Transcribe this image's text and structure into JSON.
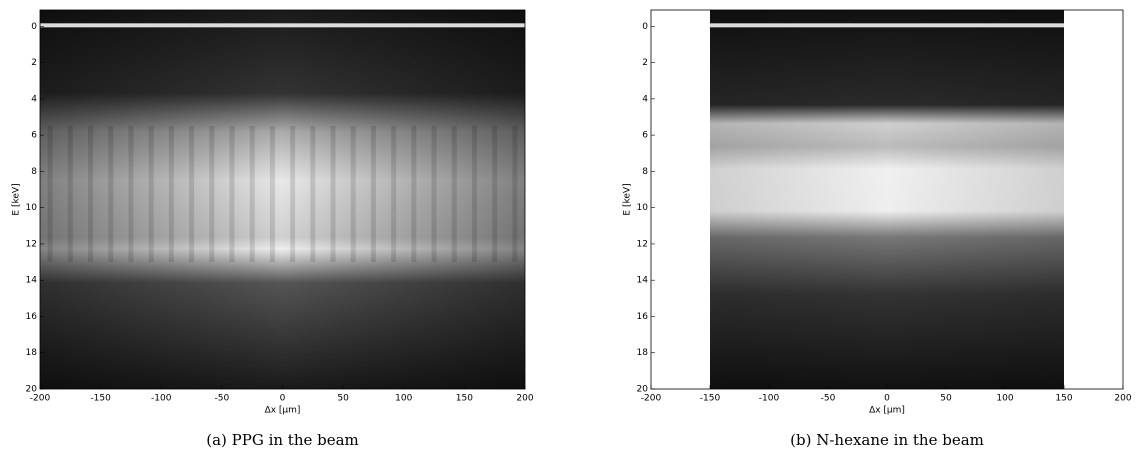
{
  "chart_data": [
    {
      "type": "heatmap",
      "xlabel": "Δx [µm]",
      "ylabel": "E [keV]",
      "caption": "(a)  PPG in the beam",
      "xlim": [
        -200,
        200
      ],
      "ylim": [
        20,
        -0.9
      ],
      "data_xlim": [
        -200,
        200
      ],
      "xticks": [
        -200,
        -150,
        -100,
        -50,
        0,
        50,
        100,
        150,
        200
      ],
      "yticks": [
        0,
        2,
        4,
        6,
        8,
        10,
        12,
        14,
        16,
        18,
        20
      ]
    },
    {
      "type": "heatmap",
      "xlabel": "Δx [µm]",
      "ylabel": "E [keV]",
      "caption": "(b)  N-hexane in the beam",
      "xlim": [
        -200,
        200
      ],
      "ylim": [
        20,
        -0.9
      ],
      "data_xlim": [
        -150,
        150
      ],
      "xticks": [
        -200,
        -150,
        -100,
        -50,
        0,
        50,
        100,
        150,
        200
      ],
      "yticks": [
        0,
        2,
        4,
        6,
        8,
        10,
        12,
        14,
        16,
        18,
        20
      ]
    }
  ]
}
